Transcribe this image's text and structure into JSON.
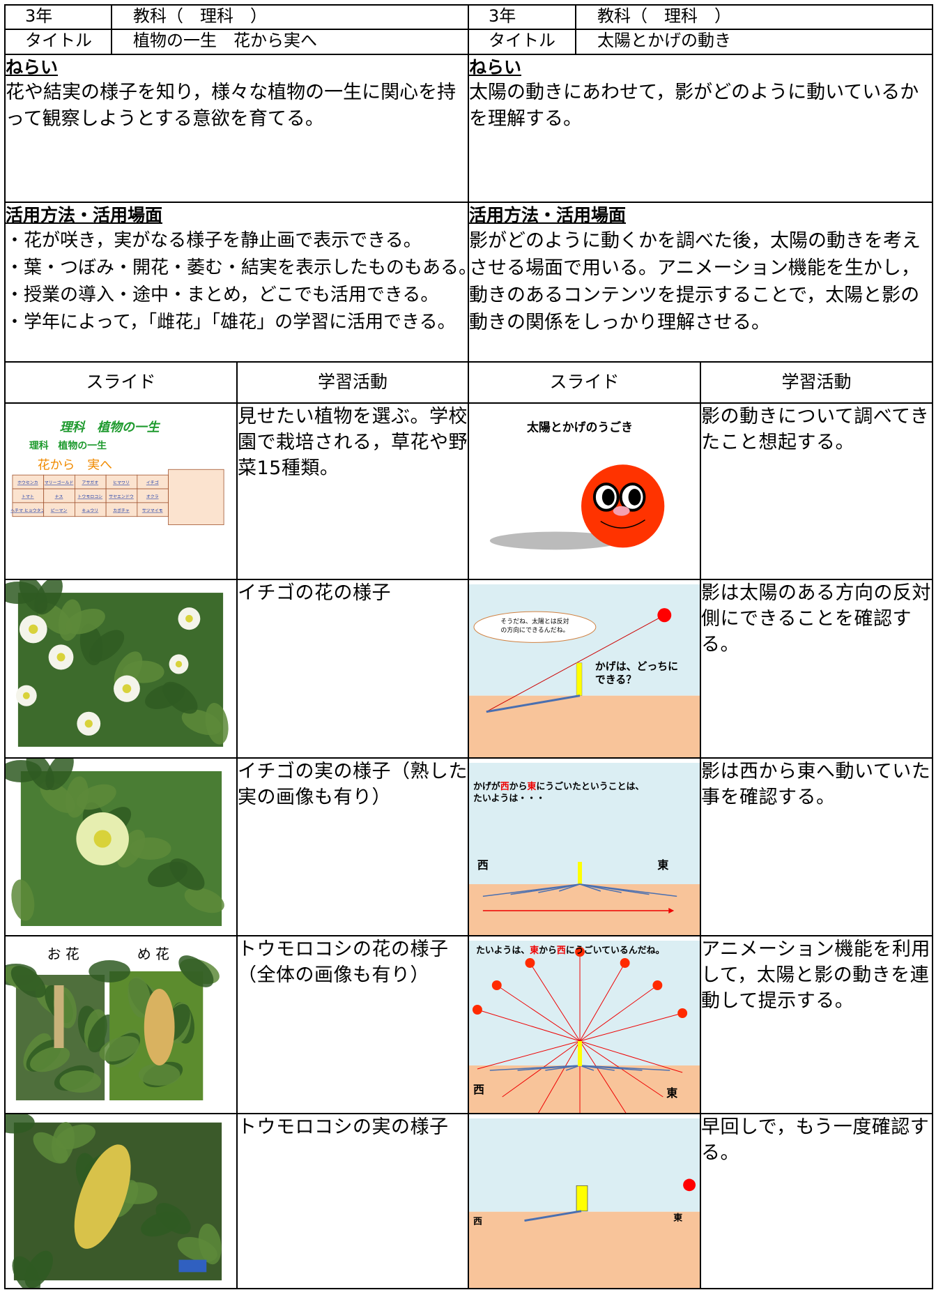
{
  "left": {
    "grade": "3年",
    "subject": "教科（　理科　）",
    "title_label": "タイトル",
    "title": "植物の一生　花から実へ",
    "aim_heading": "ねらい",
    "aim": "花や結実の様子を知り，様々な植物の一生に関心を持って観察しようとする意欲を育てる。",
    "use_heading": "活用方法・活用場面",
    "use": [
      "・花が咲き，実がなる様子を静止画で表示できる。",
      "・葉・つぼみ・開花・萎む・結実を表示したものもある。",
      "・授業の導入・途中・まとめ，どこでも活用できる。",
      "・学年によって，「雌花」「雄花」の学習に活用できる。"
    ]
  },
  "right": {
    "grade": "3年",
    "subject": "教科（　理科　）",
    "title_label": "タイトル",
    "title": "太陽とかげの動き",
    "aim_heading": "ねらい",
    "aim": "太陽の動きにあわせて，影がどのように動いているかを理解する。",
    "use_heading": "活用方法・活用場面",
    "use": [
      "影がどのように動くかを調べた後，太陽の動きを考えさせる場面で用いる。アニメーション機能を生かし，動きのあるコンテンツを提示することで，太陽と影の動きの関係をしっかり理解させる。"
    ]
  },
  "table": {
    "headers": [
      "スライド",
      "学習活動",
      "スライド",
      "学習活動"
    ],
    "rows": [
      {
        "left_slide": {
          "texts": [
            "理科　植物の一生",
            "理科　植物の一生",
            "花から　実へ"
          ],
          "plants": [
            "ホウセンカ",
            "マリーゴールド",
            "アサガオ",
            "ヒマワリ",
            "イチゴ",
            "トマト",
            "ナス",
            "トウモロコシ",
            "サヤエンドウ",
            "オクラ",
            "ヘチマ ヒョウタン",
            "ピーマン",
            "キュウリ",
            "カボチャ",
            "サツマイモ"
          ]
        },
        "left_activity": "見せたい植物を選ぶ。学校園で栽培される，草花や野菜15種類。",
        "right_slide": {
          "texts": [
            "太陽とかげのうごき"
          ]
        },
        "right_activity": "影の動きについて調べてきたこと想起する。"
      },
      {
        "left_slide": {
          "texts": []
        },
        "left_activity": "イチゴの花の様子",
        "right_slide": {
          "texts": [
            "そうだね、太陽とは反対",
            "の方向にできるんだね。",
            "かげは、どっちに",
            "できる？"
          ]
        },
        "right_activity": "影は太陽のある方向の反対側にできることを確認する。"
      },
      {
        "left_slide": {
          "texts": []
        },
        "left_activity": "イチゴの実の様子（熟した実の画像も有り）",
        "right_slide": {
          "texts": [
            "かげが",
            "西",
            "から",
            "東",
            "にうごいたということは、",
            "たいようは・・・",
            "西",
            "東"
          ]
        },
        "right_activity": "影は西から東へ動いていた事を確認する。"
      },
      {
        "left_slide": {
          "texts": [
            "お 花",
            "め 花"
          ]
        },
        "left_activity": "トウモロコシの花の様子（全体の画像も有り）",
        "right_slide": {
          "texts": [
            "たいようは、",
            "東",
            "から",
            "西",
            "にうごいているんだね。",
            "西",
            "東"
          ]
        },
        "right_activity": "アニメーション機能を利用して，太陽と影の動きを連動して提示する。"
      },
      {
        "left_slide": {
          "texts": []
        },
        "left_activity": "トウモロコシの実の様子",
        "right_slide": {
          "texts": [
            "西",
            "東"
          ]
        },
        "right_activity": "早回しで，もう一度確認する。"
      }
    ]
  }
}
